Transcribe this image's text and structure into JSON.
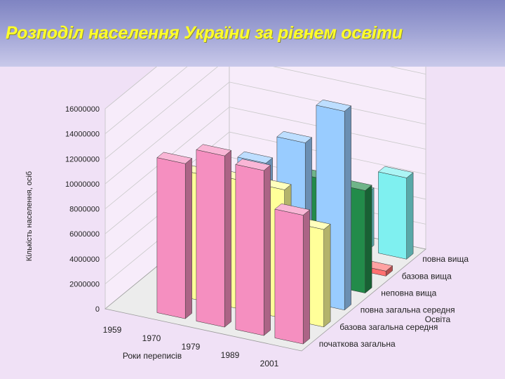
{
  "page": {
    "title": "Розподіл населення України за рівнем освіти"
  },
  "chart_data": {
    "type": "bar",
    "subtype": "3d-grouped-columns",
    "title": "",
    "xlabel": "Роки переписів",
    "ylabel": "Кількість населення, осіб",
    "zlabel": "Освіта",
    "ylim": [
      0,
      16000000
    ],
    "yticks": [
      0,
      2000000,
      4000000,
      6000000,
      8000000,
      10000000,
      12000000,
      14000000,
      16000000
    ],
    "grid": true,
    "categories": [
      "1959",
      "1970",
      "1979",
      "1989",
      "2001"
    ],
    "series": [
      {
        "name": "початкова загальна",
        "color": "#f58fc0",
        "values": [
          null,
          12400000,
          13700000,
          13200000,
          10300000
        ]
      },
      {
        "name": "базова загальна середня",
        "color": "#ffff99",
        "values": [
          null,
          10100000,
          10300000,
          10300000,
          7800000
        ]
      },
      {
        "name": "повна загальна середня",
        "color": "#99ccff",
        "values": [
          3900000,
          7400000,
          10400000,
          12700000,
          15900000
        ]
      },
      {
        "name": "неповна вища",
        "color": "#228b4a",
        "values": [
          2400000,
          3900000,
          5600000,
          8400000,
          8200000
        ]
      },
      {
        "name": "базова вища",
        "color": "#ff7070",
        "values": [
          0,
          100000,
          200000,
          300000,
          400000
        ]
      },
      {
        "name": "повна вища",
        "color": "#7ff0f0",
        "values": [
          500000,
          1800000,
          3300000,
          4600000,
          6500000
        ]
      }
    ]
  }
}
